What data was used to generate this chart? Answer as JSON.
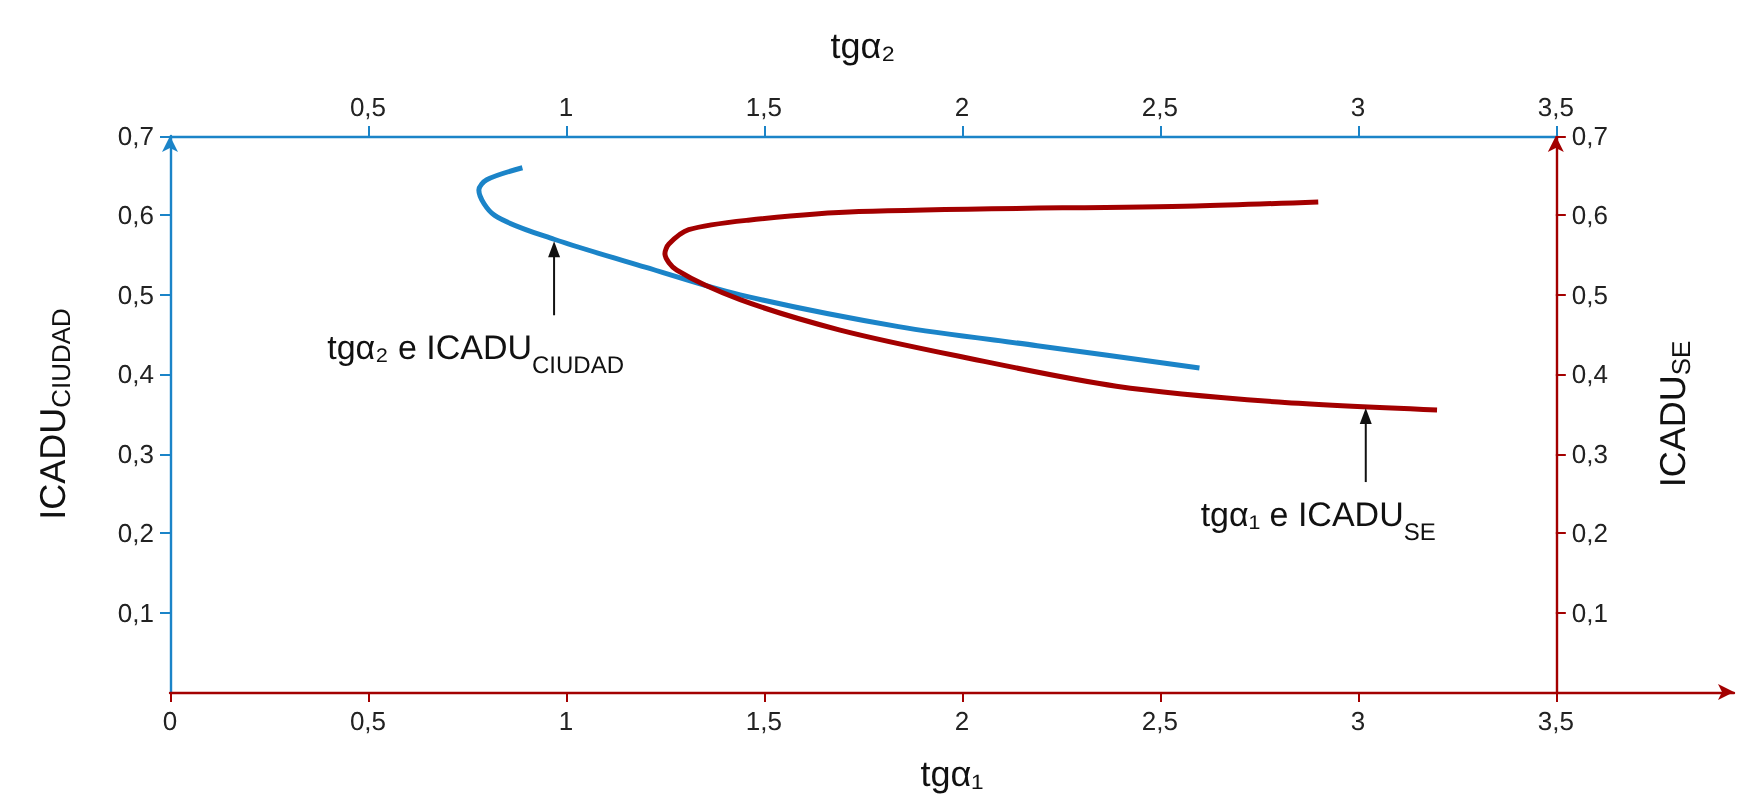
{
  "chart_data": {
    "type": "line",
    "xlabel": "tgα₁",
    "x2label": "tgα₂",
    "ylabel": "ICADU$_{CIUDAD}$",
    "y2label": "ICADU$_{SE}$",
    "xlim": [
      0,
      3.95
    ],
    "xticks": [
      {
        "value": 0,
        "label": "0"
      },
      {
        "value": 0.5,
        "label": "0,5"
      },
      {
        "value": 1,
        "label": "1"
      },
      {
        "value": 1.5,
        "label": "1,5"
      },
      {
        "value": 2,
        "label": "2"
      },
      {
        "value": 2.5,
        "label": "2,5"
      },
      {
        "value": 3,
        "label": "3"
      },
      {
        "value": 3.5,
        "label": "3,5"
      }
    ],
    "x2lim": [
      0,
      3.5
    ],
    "x2ticks": [
      {
        "value": 0.5,
        "label": "0,5"
      },
      {
        "value": 1,
        "label": "1"
      },
      {
        "value": 1.5,
        "label": "1,5"
      },
      {
        "value": 2,
        "label": "2"
      },
      {
        "value": 2.5,
        "label": "2,5"
      },
      {
        "value": 3,
        "label": "3"
      },
      {
        "value": 3.5,
        "label": "3,5"
      }
    ],
    "ylim": [
      0,
      0.7
    ],
    "yticks": [
      {
        "value": 0.1,
        "label": "0,1"
      },
      {
        "value": 0.2,
        "label": "0,2"
      },
      {
        "value": 0.3,
        "label": "0,3"
      },
      {
        "value": 0.4,
        "label": "0,4"
      },
      {
        "value": 0.5,
        "label": "0,5"
      },
      {
        "value": 0.6,
        "label": "0,6"
      },
      {
        "value": 0.7,
        "label": "0,7"
      }
    ],
    "y2lim": [
      0,
      0.7
    ],
    "y2ticks": [
      {
        "value": 0.1,
        "label": "0,1"
      },
      {
        "value": 0.2,
        "label": "0,2"
      },
      {
        "value": 0.3,
        "label": "0,3"
      },
      {
        "value": 0.4,
        "label": "0,4"
      },
      {
        "value": 0.5,
        "label": "0,5"
      },
      {
        "value": 0.6,
        "label": "0,6"
      },
      {
        "value": 0.7,
        "label": "0,7"
      }
    ],
    "marker": "none",
    "series": [
      {
        "color": "#1b84c8",
        "axis": "x2",
        "x": [
          0.89,
          0.8,
          0.78,
          0.82,
          0.97,
          1.2,
          1.44,
          1.84,
          2.19,
          2.6
        ],
        "values": [
          0.66,
          0.645,
          0.632,
          0.6,
          0.57,
          0.535,
          0.5,
          0.46,
          0.436,
          0.408
        ]
      },
      {
        "color": "#a30000",
        "axis": "y2",
        "x": [
          2.9,
          2.59,
          1.74,
          1.46,
          1.31,
          1.26,
          1.25,
          1.28,
          1.44,
          1.69,
          1.99,
          2.39,
          2.8,
          3.2
        ],
        "values": [
          0.617,
          0.612,
          0.605,
          0.594,
          0.582,
          0.564,
          0.552,
          0.531,
          0.494,
          0.456,
          0.423,
          0.385,
          0.365,
          0.355
        ]
      }
    ],
    "annotations": [
      {
        "text": "tgα₂ e ICADU$_{CIUDAD}$",
        "x": 0.97,
        "y": 0.57
      },
      {
        "text": "tgα₁ e ICADU$_{SE}$",
        "x": 3.02,
        "y": 0.36
      }
    ]
  }
}
